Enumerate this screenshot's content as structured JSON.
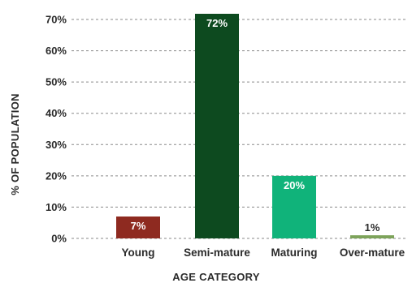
{
  "chart_data": {
    "type": "bar",
    "categories": [
      "Young",
      "Semi-mature",
      "Maturing",
      "Over-mature"
    ],
    "values": [
      7,
      72,
      20,
      1
    ],
    "data_labels": [
      "7%",
      "72%",
      "20%",
      "1%"
    ],
    "bar_colors": [
      "#8e2a20",
      "#0d4a1f",
      "#10b37a",
      "#7da35a"
    ],
    "label_colors": [
      "#ffffff",
      "#ffffff",
      "#ffffff",
      "#2b2b2b"
    ],
    "title": "",
    "xlabel": "AGE CATEGORY",
    "ylabel": "% OF POPULATION",
    "ylim": [
      0,
      70
    ],
    "yticks": [
      0,
      10,
      20,
      30,
      40,
      50,
      60,
      70
    ],
    "ytick_labels": [
      "0%",
      "10%",
      "20%",
      "30%",
      "40%",
      "50%",
      "60%",
      "70%"
    ],
    "grid": true,
    "legend": false
  }
}
